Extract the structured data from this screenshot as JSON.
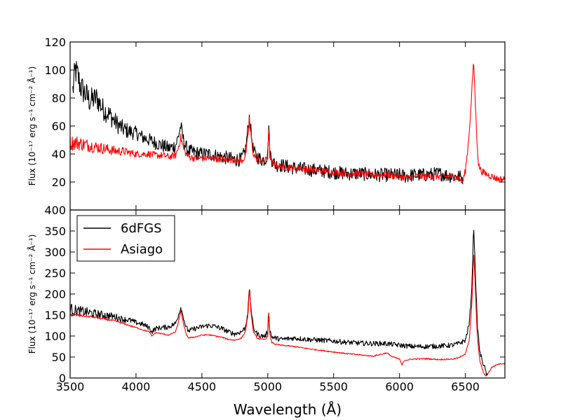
{
  "figure": {
    "xlabel": "Wavelength (Å)",
    "ylabel": "Flux (10⁻¹⁷ erg s⁻¹ cm⁻² Å⁻¹)"
  },
  "legend": {
    "location": "upper-left",
    "entries": [
      "6dFGS",
      "Asiago"
    ]
  },
  "colors": {
    "6dFGS": "#000000",
    "Asiago": "#ff0000"
  },
  "chart_data": [
    {
      "type": "line",
      "panel": "top",
      "xlabel": "",
      "ylabel": "Flux (10⁻¹⁷ erg s⁻¹ cm⁻² Å⁻¹)",
      "xlim": [
        3500,
        6800
      ],
      "ylim": [
        0,
        120
      ],
      "xticks": [
        3500,
        4000,
        4500,
        5000,
        5500,
        6000,
        6500
      ],
      "yticks": [
        20,
        40,
        60,
        80,
        100,
        120
      ],
      "ytick_labels": [
        "20",
        "40",
        "60",
        "80",
        "100",
        "120"
      ],
      "grid": false,
      "series": [
        {
          "name": "6dFGS",
          "x": [
            3520,
            3540,
            3560,
            3580,
            3600,
            3650,
            3700,
            3750,
            3800,
            3850,
            3900,
            3950,
            4000,
            4050,
            4100,
            4150,
            4200,
            4250,
            4300,
            4320,
            4340,
            4360,
            4380,
            4400,
            4450,
            4500,
            4550,
            4600,
            4650,
            4700,
            4750,
            4800,
            4830,
            4850,
            4861,
            4870,
            4890,
            4920,
            4950,
            4980,
            5000,
            5007,
            5015,
            5030,
            5060,
            5100,
            5200,
            5300,
            5400,
            5500,
            5600,
            5700,
            5800,
            5900,
            6000,
            6050,
            6100,
            6200,
            6300,
            6400,
            6450,
            6480
          ],
          "y": [
            85,
            100,
            95,
            88,
            85,
            78,
            80,
            72,
            68,
            62,
            58,
            56,
            55,
            52,
            50,
            48,
            46,
            44,
            46,
            52,
            60,
            50,
            45,
            42,
            41,
            40,
            40,
            39,
            38,
            37,
            36,
            36,
            42,
            58,
            67,
            58,
            42,
            38,
            36,
            36,
            40,
            63,
            42,
            36,
            32,
            32,
            30,
            29,
            28,
            27,
            26,
            26,
            25,
            25,
            25,
            24,
            25,
            25,
            26,
            24,
            24,
            23
          ],
          "noise": 5
        },
        {
          "name": "Asiago",
          "x": [
            3500,
            3550,
            3600,
            3650,
            3700,
            3750,
            3800,
            3850,
            3900,
            3950,
            4000,
            4050,
            4100,
            4150,
            4200,
            4250,
            4300,
            4320,
            4340,
            4360,
            4380,
            4400,
            4450,
            4500,
            4550,
            4600,
            4650,
            4700,
            4750,
            4800,
            4830,
            4850,
            4861,
            4870,
            4890,
            4920,
            4950,
            4980,
            5000,
            5007,
            5015,
            5030,
            5060,
            5100,
            5200,
            5300,
            5400,
            5500,
            5600,
            5700,
            5800,
            5900,
            6000,
            6050,
            6100,
            6200,
            6300,
            6400,
            6450,
            6480,
            6500,
            6520,
            6540,
            6555,
            6563,
            6570,
            6585,
            6600,
            6620,
            6650,
            6700,
            6750,
            6800
          ],
          "y": [
            48,
            48,
            47,
            46,
            45,
            44,
            43,
            42,
            42,
            41,
            40,
            40,
            40,
            39,
            39,
            38,
            39,
            44,
            52,
            44,
            40,
            38,
            37,
            37,
            37,
            37,
            36,
            36,
            36,
            35,
            38,
            52,
            66,
            55,
            40,
            36,
            35,
            35,
            38,
            62,
            40,
            34,
            32,
            31,
            30,
            29,
            28,
            27,
            26,
            26,
            25,
            25,
            24,
            23,
            24,
            24,
            24,
            24,
            23,
            20,
            28,
            45,
            70,
            95,
            106,
            90,
            55,
            32,
            28,
            26,
            24,
            22,
            22
          ],
          "noise": 2.5
        }
      ]
    },
    {
      "type": "line",
      "panel": "bottom",
      "xlabel": "Wavelength (Å)",
      "ylabel": "Flux (10⁻¹⁷ erg s⁻¹ cm⁻² Å⁻¹)",
      "xlim": [
        3500,
        6800
      ],
      "ylim": [
        0,
        400
      ],
      "xticks": [
        3500,
        4000,
        4500,
        5000,
        5500,
        6000,
        6500
      ],
      "yticks": [
        0,
        50,
        100,
        150,
        200,
        250,
        300,
        350,
        400
      ],
      "ytick_labels": [
        "0",
        "50",
        "100",
        "150",
        "200",
        "250",
        "300",
        "350",
        "400"
      ],
      "grid": false,
      "series": [
        {
          "name": "6dFGS",
          "x": [
            3500,
            3550,
            3600,
            3650,
            3700,
            3750,
            3800,
            3850,
            3900,
            3950,
            4000,
            4050,
            4100,
            4120,
            4150,
            4200,
            4250,
            4300,
            4320,
            4340,
            4360,
            4380,
            4400,
            4450,
            4500,
            4550,
            4600,
            4650,
            4700,
            4750,
            4800,
            4830,
            4850,
            4861,
            4870,
            4890,
            4920,
            4950,
            4980,
            5000,
            5007,
            5015,
            5030,
            5060,
            5100,
            5200,
            5300,
            5400,
            5500,
            5600,
            5700,
            5800,
            5900,
            6000,
            6100,
            6200,
            6300,
            6400,
            6450,
            6500,
            6530,
            6550,
            6563,
            6575,
            6590,
            6610,
            6640,
            6660,
            6670
          ],
          "y": [
            165,
            160,
            158,
            155,
            152,
            150,
            148,
            145,
            140,
            138,
            132,
            128,
            120,
            110,
            118,
            120,
            122,
            130,
            148,
            168,
            145,
            120,
            112,
            118,
            122,
            125,
            123,
            118,
            110,
            105,
            110,
            120,
            160,
            218,
            175,
            120,
            105,
            100,
            100,
            110,
            165,
            115,
            98,
            95,
            92,
            95,
            92,
            90,
            88,
            85,
            83,
            82,
            82,
            78,
            75,
            75,
            76,
            78,
            82,
            90,
            130,
            220,
            365,
            260,
            130,
            60,
            30,
            10,
            0
          ],
          "noise": 6
        },
        {
          "name": "Asiago",
          "x": [
            3500,
            3550,
            3600,
            3650,
            3700,
            3750,
            3800,
            3850,
            3900,
            3950,
            4000,
            4050,
            4100,
            4120,
            4150,
            4200,
            4250,
            4300,
            4320,
            4340,
            4360,
            4380,
            4400,
            4450,
            4500,
            4550,
            4600,
            4650,
            4700,
            4750,
            4800,
            4830,
            4850,
            4861,
            4870,
            4890,
            4920,
            4950,
            4980,
            5000,
            5007,
            5015,
            5030,
            5060,
            5100,
            5200,
            5300,
            5400,
            5500,
            5600,
            5700,
            5800,
            5880,
            5900,
            5950,
            6000,
            6020,
            6030,
            6040,
            6100,
            6200,
            6300,
            6400,
            6450,
            6500,
            6530,
            6550,
            6563,
            6575,
            6590,
            6610,
            6640,
            6660,
            6680,
            6700,
            6740,
            6770,
            6800
          ],
          "y": [
            150,
            150,
            148,
            146,
            144,
            141,
            138,
            135,
            130,
            125,
            120,
            115,
            110,
            100,
            108,
            105,
            102,
            110,
            130,
            160,
            130,
            105,
            95,
            98,
            102,
            103,
            100,
            97,
            92,
            90,
            95,
            110,
            150,
            215,
            165,
            110,
            95,
            92,
            92,
            100,
            160,
            105,
            85,
            80,
            78,
            75,
            70,
            66,
            62,
            58,
            55,
            52,
            58,
            60,
            50,
            45,
            30,
            40,
            42,
            45,
            46,
            44,
            45,
            48,
            58,
            90,
            180,
            300,
            220,
            100,
            40,
            10,
            5,
            15,
            25,
            32,
            34,
            35
          ],
          "noise": 1.5
        }
      ]
    }
  ]
}
